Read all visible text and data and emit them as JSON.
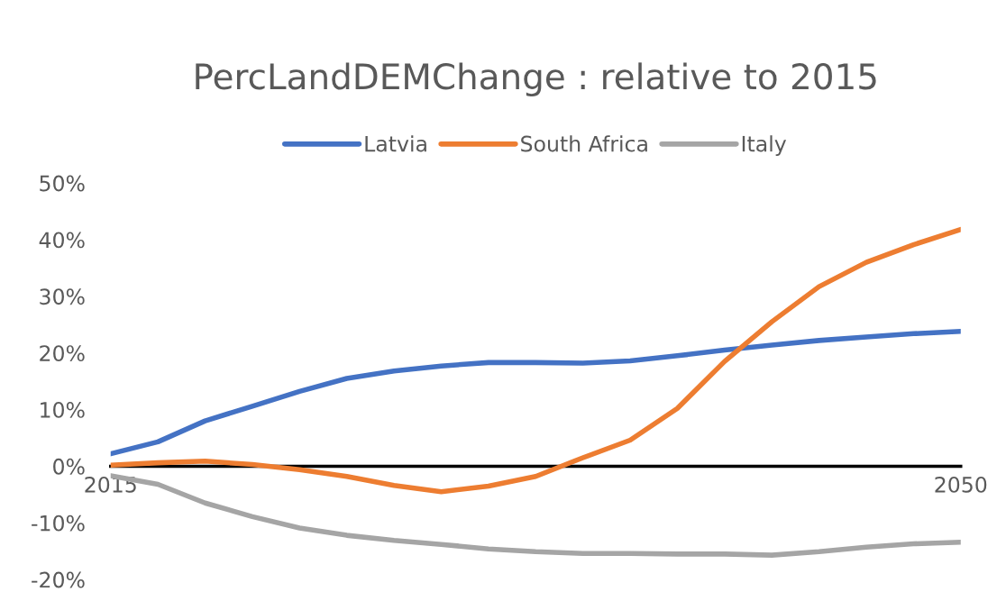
{
  "chart_data": {
    "type": "line",
    "title": "PercLandDEMChange : relative to 2015",
    "categories": [
      "2015",
      null,
      null,
      null,
      null,
      null,
      null,
      null,
      null,
      null,
      null,
      null,
      null,
      null,
      null,
      null,
      null,
      null,
      "2050"
    ],
    "series": [
      {
        "name": "Latvia",
        "color": "#4472c4",
        "values": [
          2.2,
          4.3,
          8,
          10.6,
          13.2,
          15.5,
          16.8,
          17.7,
          18.3,
          18.3,
          18.2,
          18.6,
          19.5,
          20.5,
          21.4,
          22.2,
          22.8,
          23.4,
          23.8
        ]
      },
      {
        "name": "South Africa",
        "color": "#ed7d31",
        "values": [
          0.2,
          0.6,
          0.9,
          0.3,
          -0.6,
          -1.8,
          -3.4,
          -4.5,
          -3.5,
          -1.8,
          1.5,
          4.6,
          10.2,
          18.5,
          25.5,
          31.7,
          36,
          39.1,
          41.8
        ]
      },
      {
        "name": "Italy",
        "color": "#a5a5a5",
        "values": [
          -1.7,
          -3.2,
          -6.5,
          -8.9,
          -10.9,
          -12.2,
          -13.1,
          -13.8,
          -14.6,
          -15.1,
          -15.4,
          -15.4,
          -15.5,
          -15.5,
          -15.7,
          -15.1,
          -14.3,
          -13.7,
          -13.4
        ]
      }
    ],
    "ylim": [
      -20,
      50
    ],
    "yticks": [
      {
        "value": -20,
        "label": "-20%"
      },
      {
        "value": -10,
        "label": "-10%"
      },
      {
        "value": 0,
        "label": "0%"
      },
      {
        "value": 10,
        "label": "10%"
      },
      {
        "value": 20,
        "label": "20%"
      },
      {
        "value": 30,
        "label": "30%"
      },
      {
        "value": 40,
        "label": "40%"
      },
      {
        "value": 50,
        "label": "50%"
      }
    ],
    "legend": "top",
    "grid": false,
    "marker": "none",
    "line_style": "solid"
  }
}
